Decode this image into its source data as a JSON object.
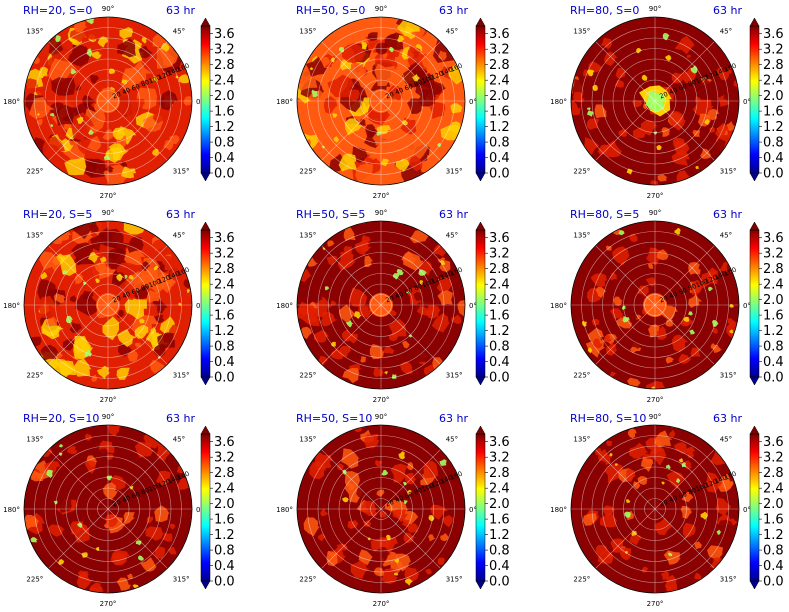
{
  "chart_data": [
    {
      "type": "heatmap",
      "subtype": "polar-contour",
      "title": "RH=20, S=0",
      "time_label": "63 hr",
      "dominant": "red",
      "center": "orange"
    },
    {
      "type": "heatmap",
      "subtype": "polar-contour",
      "title": "RH=50, S=0",
      "time_label": "63 hr",
      "dominant": "orange",
      "center": "orange"
    },
    {
      "type": "heatmap",
      "subtype": "polar-contour",
      "title": "RH=80, S=0",
      "time_label": "63 hr",
      "dominant": "darkred",
      "center": "green"
    },
    {
      "type": "heatmap",
      "subtype": "polar-contour",
      "title": "RH=20, S=5",
      "time_label": "63 hr",
      "dominant": "red",
      "center": "orange"
    },
    {
      "type": "heatmap",
      "subtype": "polar-contour",
      "title": "RH=50, S=5",
      "time_label": "63 hr",
      "dominant": "darkred",
      "center": "orange"
    },
    {
      "type": "heatmap",
      "subtype": "polar-contour",
      "title": "RH=80, S=5",
      "time_label": "63 hr",
      "dominant": "darkred",
      "center": "orange"
    },
    {
      "type": "heatmap",
      "subtype": "polar-contour",
      "title": "RH=20, S=10",
      "time_label": "63 hr",
      "dominant": "darkred",
      "center": "darkred"
    },
    {
      "type": "heatmap",
      "subtype": "polar-contour",
      "title": "RH=50, S=10",
      "time_label": "63 hr",
      "dominant": "darkred",
      "center": "darkred"
    },
    {
      "type": "heatmap",
      "subtype": "polar-contour",
      "title": "RH=80, S=10",
      "time_label": "63 hr",
      "dominant": "darkred",
      "center": "darkred"
    }
  ],
  "colorbar": {
    "ticks": [
      "0.0",
      "0.4",
      "0.8",
      "1.2",
      "1.6",
      "2.0",
      "2.4",
      "2.8",
      "3.2",
      "3.6"
    ],
    "range": [
      0,
      3.8
    ],
    "colormap": [
      "#00008f",
      "#0000ff",
      "#0080ff",
      "#00ffff",
      "#80ff80",
      "#ffff00",
      "#ff8000",
      "#ff0000",
      "#800000"
    ]
  },
  "angle_labels": [
    "90°",
    "45°",
    "0°",
    "315°",
    "270°",
    "225°",
    "180°",
    "135°"
  ],
  "radial_labels": [
    "20",
    "40",
    "60",
    "80",
    "100",
    "120",
    "140",
    "160"
  ],
  "colors": {
    "title": "#0000cc",
    "darkred": "#8b0000",
    "red": "#e02000",
    "orange": "#ff5a10",
    "yellow": "#ffd000",
    "green": "#a0ff60",
    "grid": "#ffffff"
  }
}
